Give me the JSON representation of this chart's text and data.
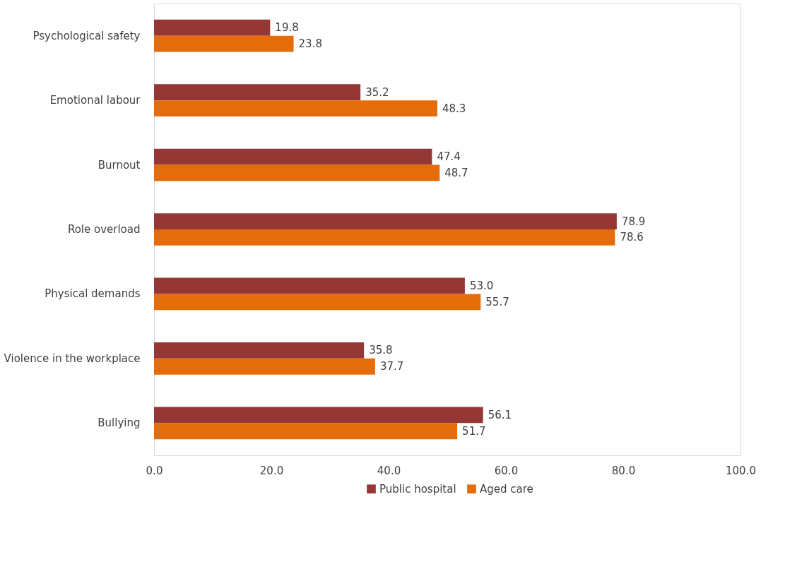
{
  "chart_data": {
    "type": "bar",
    "orientation": "horizontal",
    "categories": [
      "Psychological safety",
      "Emotional labour",
      "Burnout",
      "Role overload",
      "Physical demands",
      "Violence in the workplace",
      "Bullying"
    ],
    "series": [
      {
        "name": "Public hospital",
        "color": "#953735",
        "values": [
          19.8,
          35.2,
          47.4,
          78.9,
          53.0,
          35.8,
          56.1
        ],
        "value_labels": [
          "19.8",
          "35.2",
          "47.4",
          "78.9",
          "53.0",
          "35.8",
          "56.1"
        ]
      },
      {
        "name": "Aged care",
        "color": "#e46c0a",
        "values": [
          23.8,
          48.3,
          48.7,
          78.6,
          55.7,
          37.7,
          51.7
        ],
        "value_labels": [
          "23.8",
          "48.3",
          "48.7",
          "78.6",
          "55.7",
          "37.7",
          "51.7"
        ]
      }
    ],
    "xlim": [
      0,
      100
    ],
    "xticks": [
      {
        "value": 0,
        "label": "0.0"
      },
      {
        "value": 20,
        "label": "20.0"
      },
      {
        "value": 40,
        "label": "40.0"
      },
      {
        "value": 60,
        "label": "60.0"
      },
      {
        "value": 80,
        "label": "80.0"
      },
      {
        "value": 100,
        "label": "100.0"
      }
    ],
    "grid": false,
    "legend": "bottom"
  }
}
